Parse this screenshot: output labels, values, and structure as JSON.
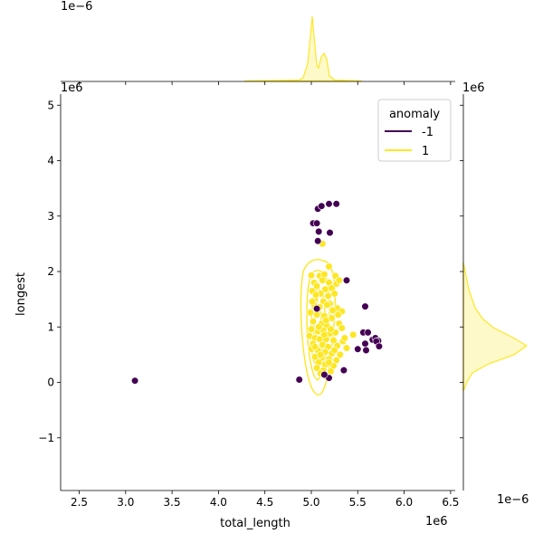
{
  "chart_data": {
    "type": "scatter",
    "xlabel": "total_length",
    "ylabel": "longest",
    "x_offset_label": "1e6",
    "y_offset_label": "1e6",
    "top_marginal_offset_label": "1e−6",
    "right_marginal_offset_label": "1e−6",
    "right_marginal_top_label": "1e6",
    "xlim": [
      2.3,
      6.55
    ],
    "ylim": [
      -1.95,
      5.2
    ],
    "x_ticks": [
      2.5,
      3.0,
      3.5,
      4.0,
      4.5,
      5.0,
      5.5,
      6.0,
      6.5
    ],
    "x_tick_labels": [
      "2.5",
      "3.0",
      "3.5",
      "4.0",
      "4.5",
      "5.0",
      "5.5",
      "6.0",
      "6.5"
    ],
    "y_ticks": [
      -1,
      0,
      1,
      2,
      3,
      4,
      5
    ],
    "y_tick_labels": [
      "−1",
      "0",
      "1",
      "2",
      "3",
      "4",
      "5"
    ],
    "legend": {
      "title": "anomaly",
      "placement": "top-right",
      "entries": [
        {
          "label": "-1",
          "color": "#440154"
        },
        {
          "label": "1",
          "color": "#fde725"
        }
      ]
    },
    "series": [
      {
        "name": "-1",
        "color": "#440154",
        "points": [
          [
            3.1,
            0.03
          ],
          [
            4.87,
            0.05
          ],
          [
            5.07,
            3.13
          ],
          [
            5.11,
            3.18
          ],
          [
            5.19,
            3.22
          ],
          [
            5.27,
            3.22
          ],
          [
            5.02,
            2.87
          ],
          [
            5.06,
            2.87
          ],
          [
            5.08,
            2.72
          ],
          [
            5.2,
            2.7
          ],
          [
            5.07,
            2.55
          ],
          [
            5.38,
            1.84
          ],
          [
            5.58,
            1.37
          ],
          [
            5.06,
            1.33
          ],
          [
            5.56,
            0.9
          ],
          [
            5.61,
            0.9
          ],
          [
            5.66,
            0.77
          ],
          [
            5.69,
            0.8
          ],
          [
            5.72,
            0.75
          ],
          [
            5.7,
            0.74
          ],
          [
            5.58,
            0.7
          ],
          [
            5.59,
            0.58
          ],
          [
            5.73,
            0.65
          ],
          [
            5.5,
            0.6
          ],
          [
            5.35,
            0.22
          ],
          [
            5.19,
            0.08
          ],
          [
            5.14,
            0.14
          ]
        ]
      },
      {
        "name": "1",
        "color": "#fde725",
        "points": [
          [
            5.12,
            2.5
          ],
          [
            5.19,
            2.09
          ],
          [
            5.0,
            1.93
          ],
          [
            5.09,
            1.92
          ],
          [
            5.14,
            1.95
          ],
          [
            5.26,
            1.92
          ],
          [
            5.03,
            1.8
          ],
          [
            5.12,
            1.84
          ],
          [
            5.19,
            1.8
          ],
          [
            5.27,
            1.78
          ],
          [
            5.3,
            1.84
          ],
          [
            5.06,
            1.74
          ],
          [
            5.15,
            1.68
          ],
          [
            5.22,
            1.7
          ],
          [
            5.01,
            1.65
          ],
          [
            5.1,
            1.6
          ],
          [
            5.18,
            1.56
          ],
          [
            5.25,
            1.6
          ],
          [
            5.04,
            1.5
          ],
          [
            5.13,
            1.46
          ],
          [
            5.2,
            1.42
          ],
          [
            5.03,
            1.4
          ],
          [
            5.09,
            1.36
          ],
          [
            5.28,
            1.34
          ],
          [
            5.33,
            1.28
          ],
          [
            4.99,
            1.26
          ],
          [
            5.06,
            1.22
          ],
          [
            5.14,
            1.2
          ],
          [
            5.22,
            1.16
          ],
          [
            5.02,
            1.1
          ],
          [
            5.11,
            1.06
          ],
          [
            5.17,
            1.02
          ],
          [
            5.3,
            1.06
          ],
          [
            5.33,
            0.98
          ],
          [
            5.0,
            0.96
          ],
          [
            5.07,
            0.92
          ],
          [
            5.13,
            0.94
          ],
          [
            5.2,
            0.88
          ],
          [
            5.26,
            0.9
          ],
          [
            5.45,
            0.86
          ],
          [
            4.98,
            0.84
          ],
          [
            5.04,
            0.8
          ],
          [
            5.09,
            0.78
          ],
          [
            5.16,
            0.78
          ],
          [
            5.24,
            0.76
          ],
          [
            5.34,
            0.74
          ],
          [
            5.02,
            0.7
          ],
          [
            5.12,
            0.68
          ],
          [
            5.18,
            0.64
          ],
          [
            5.28,
            0.66
          ],
          [
            5.38,
            0.62
          ],
          [
            5.0,
            0.6
          ],
          [
            5.07,
            0.58
          ],
          [
            5.15,
            0.55
          ],
          [
            5.22,
            0.52
          ],
          [
            5.31,
            0.5
          ],
          [
            5.04,
            0.46
          ],
          [
            5.11,
            0.44
          ],
          [
            5.19,
            0.42
          ],
          [
            5.27,
            0.4
          ],
          [
            5.08,
            0.36
          ],
          [
            5.15,
            0.32
          ],
          [
            5.24,
            0.3
          ],
          [
            5.06,
            0.26
          ],
          [
            5.13,
            0.22
          ],
          [
            5.21,
            0.2
          ],
          [
            5.1,
            0.16
          ],
          [
            5.17,
            0.1
          ],
          [
            5.05,
            1.58
          ],
          [
            5.23,
            1.3
          ],
          [
            5.16,
            1.12
          ],
          [
            5.08,
            1.0
          ],
          [
            5.21,
            0.96
          ],
          [
            5.14,
            0.86
          ],
          [
            5.04,
            0.64
          ],
          [
            5.25,
            0.58
          ],
          [
            5.1,
            0.5
          ],
          [
            5.19,
            0.36
          ],
          [
            5.01,
            1.46
          ],
          [
            5.17,
            1.4
          ],
          [
            5.29,
            1.22
          ],
          [
            5.36,
            0.8
          ]
        ]
      }
    ],
    "kde_color": "#fde725"
  }
}
